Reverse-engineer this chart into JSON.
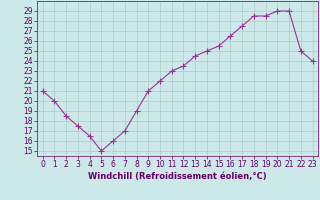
{
  "x": [
    0,
    1,
    2,
    3,
    4,
    5,
    6,
    7,
    8,
    9,
    10,
    11,
    12,
    13,
    14,
    15,
    16,
    17,
    18,
    19,
    20,
    21,
    22,
    23
  ],
  "y": [
    21,
    20,
    18.5,
    17.5,
    16.5,
    15,
    16,
    17,
    19,
    21,
    22,
    23,
    23.5,
    24.5,
    25,
    25.5,
    26.5,
    27.5,
    28.5,
    28.5,
    29,
    29,
    25,
    24
  ],
  "line_color": "#993399",
  "marker": "+",
  "marker_size": 4,
  "bg_color": "#cce8e8",
  "grid_color": "#aacccc",
  "xlabel": "Windchill (Refroidissement éolien,°C)",
  "ylim": [
    14.5,
    30.0
  ],
  "xlim": [
    -0.5,
    23.5
  ],
  "yticks": [
    15,
    16,
    17,
    18,
    19,
    20,
    21,
    22,
    23,
    24,
    25,
    26,
    27,
    28,
    29
  ],
  "xticks": [
    0,
    1,
    2,
    3,
    4,
    5,
    6,
    7,
    8,
    9,
    10,
    11,
    12,
    13,
    14,
    15,
    16,
    17,
    18,
    19,
    20,
    21,
    22,
    23
  ],
  "tick_color": "#660066",
  "label_color": "#660066",
  "tick_fontsize": 5.5,
  "xlabel_fontsize": 6.0
}
